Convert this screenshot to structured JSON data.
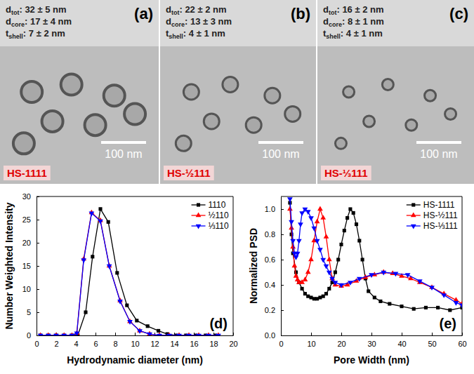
{
  "images": [
    {
      "letter": "(a)",
      "lines": [
        {
          "symbol": "d",
          "subscript": "tot",
          "text": ": 32 ± 5 nm"
        },
        {
          "symbol": "d",
          "subscript": "core",
          "text": ": 17 ± 4 nm"
        },
        {
          "symbol": "t",
          "subscript": "shell",
          "text": ": 7 ± 2 nm"
        }
      ],
      "scale_bar": "100 nm",
      "sample": "HS-1111"
    },
    {
      "letter": "(b)",
      "lines": [
        {
          "symbol": "d",
          "subscript": "tot",
          "text": ": 22 ± 2 nm"
        },
        {
          "symbol": "d",
          "subscript": "core",
          "text": ": 13 ± 3 nm"
        },
        {
          "symbol": "t",
          "subscript": "shell",
          "text": ": 4 ± 1 nm"
        }
      ],
      "scale_bar": "100 nm",
      "sample": "HS-½111"
    },
    {
      "letter": "(c)",
      "lines": [
        {
          "symbol": "d",
          "subscript": "tot",
          "text": ": 16 ± 2 nm"
        },
        {
          "symbol": "d",
          "subscript": "core",
          "text": ": 8 ± 1 nm"
        },
        {
          "symbol": "t",
          "subscript": "shell",
          "text": ": 4 ± 1 nm"
        }
      ],
      "scale_bar": "100 nm",
      "sample": "HS-⅓111"
    }
  ],
  "chart_data": [
    {
      "type": "line",
      "panel_label": "(d)",
      "x_label": "Hydrodynamic diameter (nm)",
      "y_label": "Number Weighted Intensity",
      "xlim": [
        0,
        20
      ],
      "xticks": [
        0,
        2,
        4,
        6,
        8,
        10,
        12,
        14,
        16,
        18,
        20
      ],
      "ylim": [
        0,
        30
      ],
      "yticks": [
        0,
        5,
        10,
        15,
        20,
        25,
        30
      ],
      "grid": false,
      "legend": "top-right",
      "series": [
        {
          "name": "1110",
          "color": "#000000",
          "marker": "square",
          "line_style": "solid",
          "x": [
            0.4,
            1.2,
            2.0,
            2.8,
            3.6,
            4.2,
            5.0,
            5.7,
            6.5,
            7.3,
            8.2,
            9.2,
            10.2,
            11.3,
            12.4,
            13.3,
            14.2,
            15.2,
            16.2,
            17.2,
            18.2
          ],
          "values": [
            0,
            0,
            0,
            0,
            0,
            0,
            5,
            17,
            27.3,
            24.5,
            13.5,
            6.5,
            3.2,
            2,
            1,
            0.3,
            0,
            0,
            0,
            0,
            0
          ]
        },
        {
          "name": "½110",
          "color": "#ff0000",
          "marker": "triangle-up",
          "line_style": "solid",
          "x": [
            0.4,
            1.2,
            2.0,
            2.8,
            3.6,
            4.1,
            4.8,
            5.6,
            6.5,
            7.4,
            8.5,
            9.5,
            10.5,
            11.5,
            12.5,
            13.5,
            14.5,
            15.5,
            16.5,
            17.5,
            18.5
          ],
          "values": [
            0,
            0,
            0,
            0,
            0,
            0.5,
            16.5,
            26.5,
            24.8,
            15,
            7.5,
            3,
            1,
            0.3,
            0,
            0,
            0,
            0,
            0,
            0,
            0
          ]
        },
        {
          "name": "⅓110",
          "color": "#0000ff",
          "marker": "triangle-down",
          "line_style": "solid",
          "x": [
            0.4,
            1.2,
            2.0,
            2.8,
            3.6,
            4.1,
            4.8,
            5.6,
            6.5,
            7.4,
            8.5,
            9.5,
            10.5,
            11.5,
            12.5,
            13.5,
            14.5,
            15.5,
            16.5,
            17.5,
            18.5
          ],
          "values": [
            0,
            0,
            0,
            0,
            0,
            0.5,
            16.3,
            26.4,
            24.7,
            15,
            7.4,
            3,
            1,
            0.3,
            0,
            0,
            0,
            0,
            0,
            0,
            0
          ]
        }
      ]
    },
    {
      "type": "line",
      "panel_label": "(e)",
      "x_label": "Pore Width (nm)",
      "y_label": "Normalized PSD",
      "xlim": [
        0,
        60
      ],
      "xticks": [
        0,
        10,
        20,
        30,
        40,
        50,
        60
      ],
      "ylim": [
        0,
        1.1
      ],
      "yticks": [
        {
          "value": 0,
          "label": "0.0"
        },
        {
          "value": 0.2,
          "label": "0.2"
        },
        {
          "value": 0.4,
          "label": "0.4"
        },
        {
          "value": 0.6,
          "label": "0.6"
        },
        {
          "value": 0.8,
          "label": "0.8"
        },
        {
          "value": 1,
          "label": "1.0"
        }
      ],
      "grid": false,
      "legend": "top-right",
      "series": [
        {
          "name": "HS-1111",
          "color": "#000000",
          "marker": "square",
          "line_style": "solid",
          "x": [
            3,
            3.5,
            4,
            5,
            6,
            7,
            8,
            9,
            10,
            11,
            12,
            13,
            14,
            15,
            16,
            17,
            18,
            19,
            20,
            21,
            22,
            23,
            24,
            25,
            26,
            27,
            28,
            29,
            31,
            33,
            36,
            40,
            44,
            48,
            52,
            56,
            60
          ],
          "values": [
            1.05,
            0.8,
            0.65,
            0.5,
            0.42,
            0.37,
            0.33,
            0.31,
            0.3,
            0.29,
            0.29,
            0.3,
            0.31,
            0.33,
            0.37,
            0.42,
            0.5,
            0.6,
            0.72,
            0.83,
            0.93,
            1.0,
            0.97,
            0.88,
            0.75,
            0.6,
            0.45,
            0.35,
            0.3,
            0.27,
            0.25,
            0.23,
            0.21,
            0.22,
            0.22,
            0.2,
            0.22
          ]
        },
        {
          "name": "HS-½111",
          "color": "#ff0000",
          "marker": "triangle-up",
          "line_style": "solid",
          "x": [
            3,
            3.5,
            4,
            4.5,
            5,
            5.5,
            6,
            7,
            8,
            9,
            10,
            11,
            12,
            13,
            14,
            15,
            16,
            17,
            18,
            20,
            22,
            25,
            28,
            31,
            34,
            37,
            40,
            43,
            46,
            50,
            54,
            58,
            60
          ],
          "values": [
            1.0,
            0.85,
            0.7,
            0.55,
            0.47,
            0.44,
            0.42,
            0.42,
            0.44,
            0.5,
            0.6,
            0.75,
            0.9,
            1.0,
            0.93,
            0.78,
            0.6,
            0.45,
            0.4,
            0.39,
            0.4,
            0.43,
            0.46,
            0.48,
            0.5,
            0.49,
            0.47,
            0.45,
            0.42,
            0.38,
            0.33,
            0.28,
            0.25
          ]
        },
        {
          "name": "HS-⅓111",
          "color": "#0000ff",
          "marker": "triangle-down",
          "line_style": "solid",
          "x": [
            3,
            3.5,
            4,
            4.5,
            5,
            5.5,
            6,
            6.5,
            7,
            8,
            9,
            10,
            11,
            12,
            13,
            14,
            15,
            16,
            17,
            18,
            20,
            23,
            26,
            30,
            34,
            38,
            42,
            46,
            50,
            54,
            58,
            60
          ],
          "values": [
            1.08,
            0.9,
            0.75,
            0.65,
            0.62,
            0.65,
            0.75,
            0.88,
            0.97,
            1.0,
            0.98,
            0.93,
            0.85,
            0.75,
            0.68,
            0.6,
            0.55,
            0.5,
            0.45,
            0.42,
            0.4,
            0.42,
            0.45,
            0.48,
            0.5,
            0.49,
            0.48,
            0.43,
            0.38,
            0.32,
            0.26,
            0.24
          ]
        }
      ]
    }
  ]
}
